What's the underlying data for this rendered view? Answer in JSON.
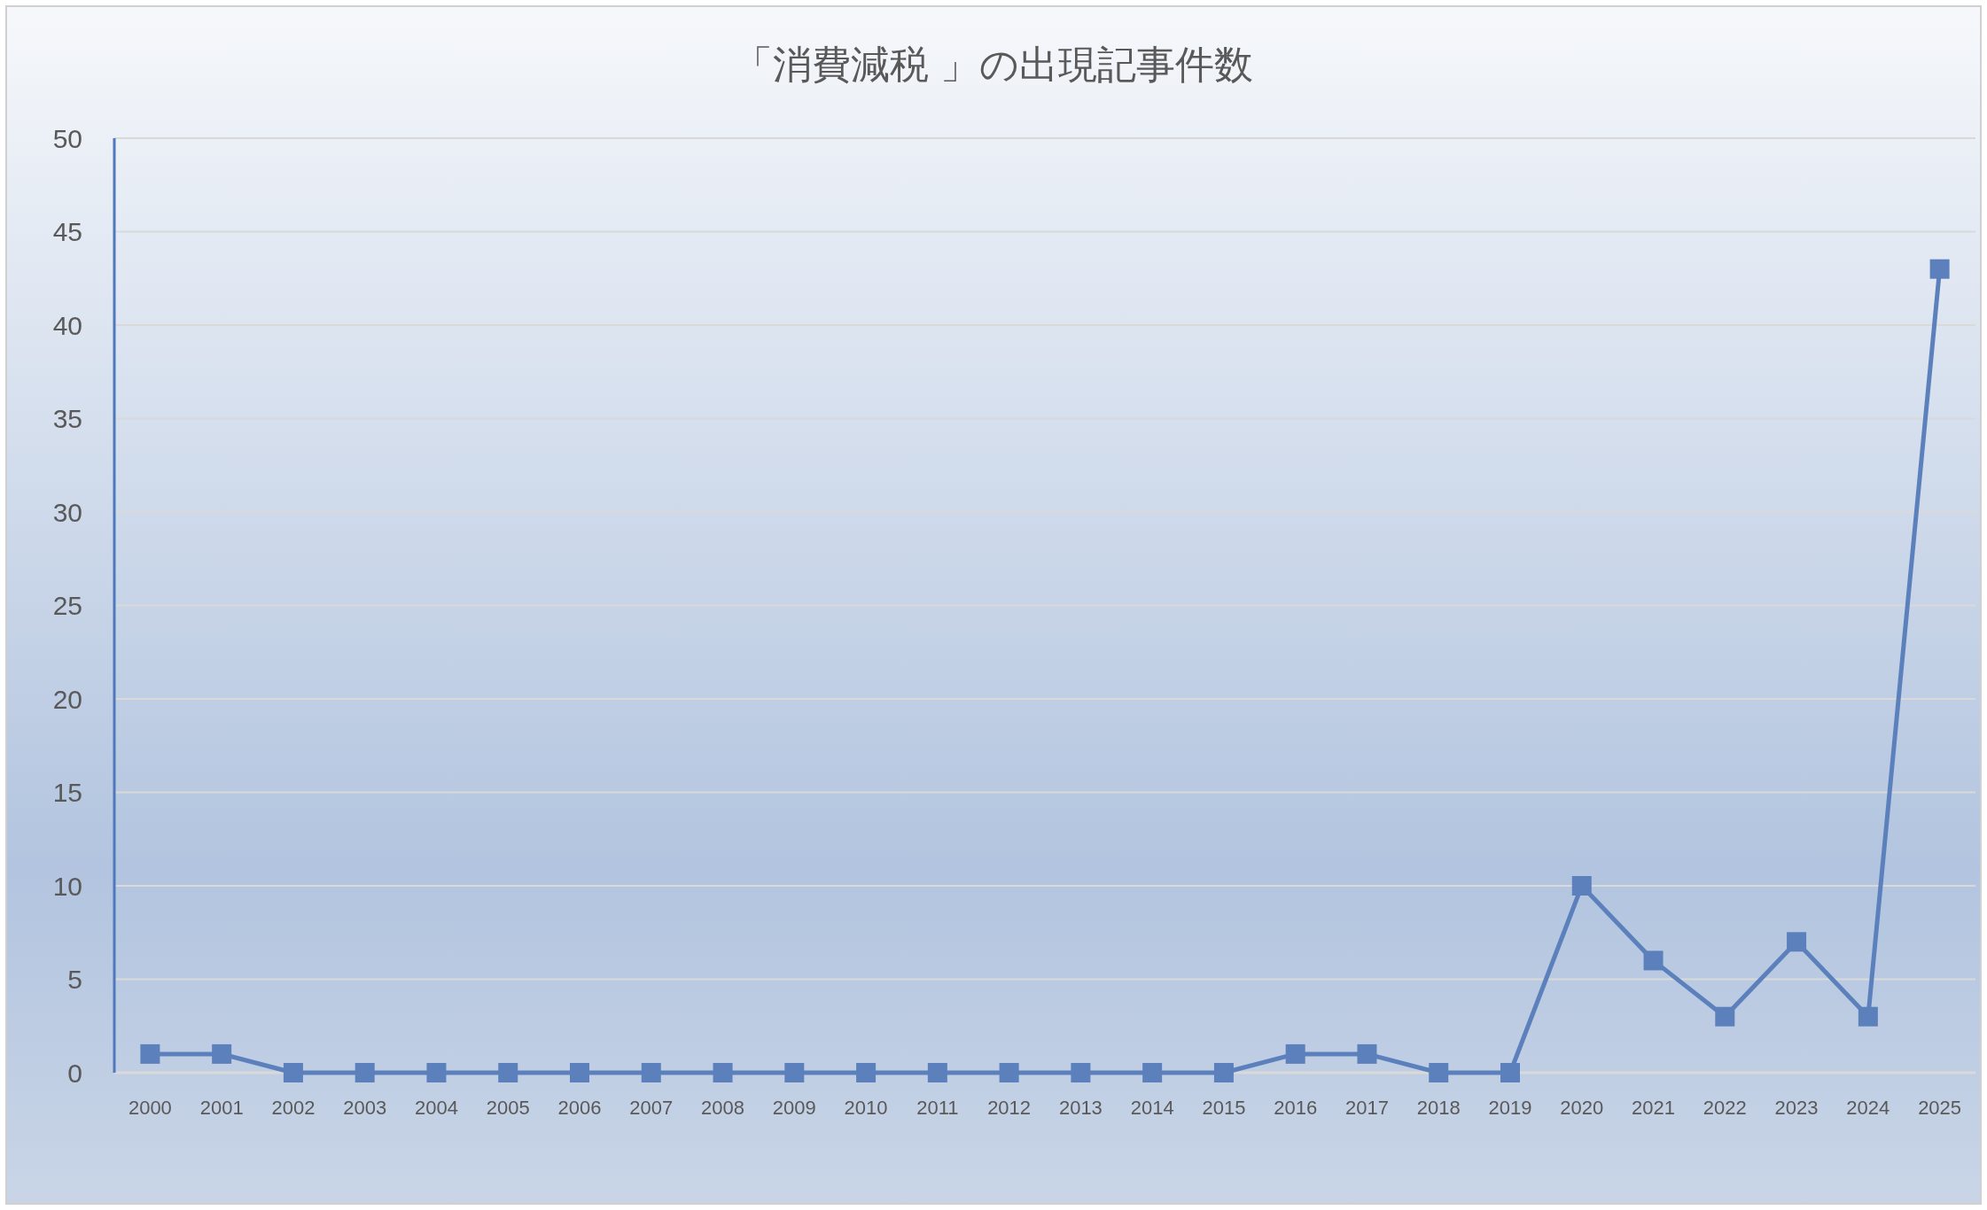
{
  "chart_data": {
    "type": "line",
    "title": "「消費減税 」の出現記事件数",
    "categories": [
      "2000",
      "2001",
      "2002",
      "2003",
      "2004",
      "2005",
      "2006",
      "2007",
      "2008",
      "2009",
      "2010",
      "2011",
      "2012",
      "2013",
      "2014",
      "2015",
      "2016",
      "2017",
      "2018",
      "2019",
      "2020",
      "2021",
      "2022",
      "2023",
      "2024",
      "2025"
    ],
    "series": [
      {
        "color": "#5b80bc",
        "values": [
          1,
          1,
          0,
          0,
          0,
          0,
          0,
          0,
          0,
          0,
          0,
          0,
          0,
          0,
          0,
          0,
          1,
          1,
          0,
          0,
          10,
          6,
          3,
          7,
          3,
          43
        ]
      }
    ],
    "ylim": [
      0,
      50
    ],
    "yticks": [
      0,
      5,
      10,
      15,
      20,
      25,
      30,
      35,
      40,
      45,
      50
    ],
    "grid": "y",
    "marker": "square",
    "line_style": "solid"
  }
}
